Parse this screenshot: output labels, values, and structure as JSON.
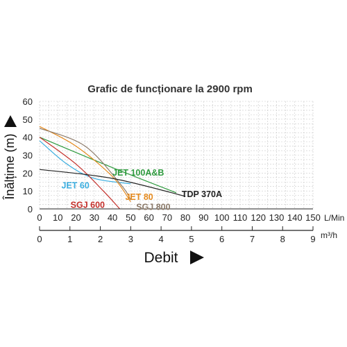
{
  "chart_data": {
    "type": "line",
    "title": "Grafic de funcționare la 2900 rpm",
    "xlabel": "Debit",
    "ylabel": "Înălțime (m)",
    "x_unit": "L/Min",
    "x2_unit": "m³/h",
    "xlim": [
      0,
      150
    ],
    "ylim": [
      0,
      60
    ],
    "x_ticks": [
      "0",
      "10",
      "20",
      "30",
      "40",
      "50",
      "60",
      "70",
      "80",
      "90",
      "100",
      "110",
      "120",
      "130",
      "140",
      "150"
    ],
    "y_ticks": [
      "0",
      "10",
      "20",
      "30",
      "40",
      "50",
      "60"
    ],
    "x2_ticks": [
      "0",
      "1",
      "2",
      "3",
      "4",
      "5",
      "6",
      "7",
      "8",
      "9"
    ],
    "grid": true,
    "series": [
      {
        "name": "JET 100A&B",
        "color": "#2e9a3e",
        "x": [
          0,
          40,
          75
        ],
        "y": [
          40,
          23,
          9
        ]
      },
      {
        "name": "JET 60",
        "color": "#3aaee0",
        "x": [
          0,
          15,
          30,
          50
        ],
        "y": [
          38,
          25,
          17,
          14
        ]
      },
      {
        "name": "JET 80",
        "color": "#e58a1e",
        "x": [
          0,
          20,
          40,
          50
        ],
        "y": [
          46,
          35,
          18,
          4
        ]
      },
      {
        "name": "SGJ 600",
        "color": "#c4302b",
        "x": [
          0,
          20,
          35,
          44
        ],
        "y": [
          40,
          25,
          10,
          0
        ]
      },
      {
        "name": "SGJ 800",
        "color": "#8c7b6b",
        "x": [
          0,
          25,
          45,
          50
        ],
        "y": [
          45,
          35,
          13,
          5
        ]
      },
      {
        "name": "TDP 370A",
        "color": "#222222",
        "x": [
          0,
          40,
          80
        ],
        "y": [
          22,
          17,
          7
        ]
      }
    ]
  }
}
